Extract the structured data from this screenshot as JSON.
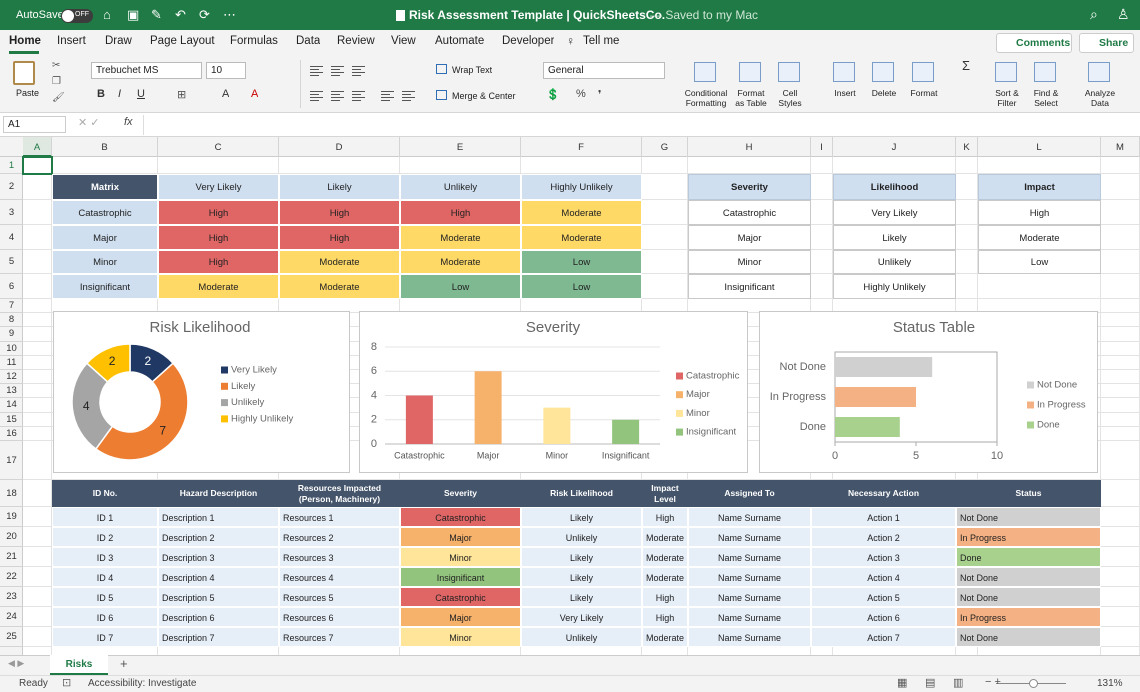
{
  "title_bar": {
    "autosave": "AutoSave",
    "toggle": "OFF",
    "title": "Risk Assessment Template | QuickSheetsCo.",
    "saved": "— Saved to my Mac"
  },
  "menu": {
    "tabs": [
      "Home",
      "Insert",
      "Draw",
      "Page Layout",
      "Formulas",
      "Data",
      "Review",
      "View",
      "Automate",
      "Developer",
      "Tell me"
    ],
    "comments": "Comments",
    "share": "Share"
  },
  "ribbon": {
    "paste": "Paste",
    "font": "Trebuchet MS",
    "font_size": "10",
    "wrap_text": "Wrap Text",
    "merge": "Merge & Center",
    "number_format": "General",
    "buttons": [
      [
        "Conditional",
        "Formatting"
      ],
      [
        "Format",
        "as Table"
      ],
      [
        "Cell",
        "Styles"
      ],
      [
        "Insert"
      ],
      [
        "Delete"
      ],
      [
        "Format"
      ],
      [
        "Sort &",
        "Filter"
      ],
      [
        "Find &",
        "Select"
      ],
      [
        "Analyze",
        "Data"
      ]
    ]
  },
  "formula_bar": {
    "cell": "A1",
    "fx": "fx"
  },
  "sheet": {
    "columns": [
      "A",
      "B",
      "C",
      "D",
      "E",
      "F",
      "G",
      "H",
      "I",
      "J",
      "K",
      "L",
      "M"
    ],
    "rows": [
      "1",
      "2",
      "3",
      "4",
      "5",
      "6",
      "7",
      "8",
      "9",
      "10",
      "11",
      "12",
      "13",
      "14",
      "15",
      "16",
      "17",
      "18",
      "19",
      "20",
      "21",
      "22",
      "23",
      "24",
      "25"
    ]
  },
  "matrix": {
    "header": [
      "Matrix",
      "Very Likely",
      "Likely",
      "Unlikely",
      "Highly Unlikely"
    ],
    "rows": [
      [
        "Catastrophic",
        "High",
        "High",
        "High",
        "Moderate"
      ],
      [
        "Major",
        "High",
        "High",
        "Moderate",
        "Moderate"
      ],
      [
        "Minor",
        "High",
        "Moderate",
        "Moderate",
        "Low"
      ],
      [
        "Insignificant",
        "Moderate",
        "Moderate",
        "Low",
        "Low"
      ]
    ]
  },
  "lists": [
    {
      "header": "Severity",
      "items": [
        "Catastrophic",
        "Major",
        "Minor",
        "Insignificant"
      ]
    },
    {
      "header": "Likelihood",
      "items": [
        "Very Likely",
        "Likely",
        "Unlikely",
        "Highly Unlikely"
      ]
    },
    {
      "header": "Impact",
      "items": [
        "High",
        "Moderate",
        "Low"
      ]
    }
  ],
  "chart_data": [
    {
      "type": "pie",
      "title": "Risk Likelihood",
      "categories": [
        "Very Likely",
        "Likely",
        "Unlikely",
        "Highly Unlikely"
      ],
      "values": [
        2,
        7,
        4,
        2
      ],
      "colors": [
        "#203864",
        "#ed7d31",
        "#a5a5a5",
        "#ffc000"
      ],
      "donut": true,
      "legend": "right"
    },
    {
      "type": "bar",
      "title": "Severity",
      "categories": [
        "Catastrophic",
        "Major",
        "Minor",
        "Insignificant"
      ],
      "values": [
        4,
        6,
        3,
        2
      ],
      "colors": [
        "#e06666",
        "#f6b26b",
        "#ffe599",
        "#93c47d"
      ],
      "ylim": [
        0,
        8
      ],
      "yticks": [
        0,
        2,
        4,
        6,
        8
      ],
      "grid": true,
      "legend": "right"
    },
    {
      "type": "barh",
      "title": "Status Table",
      "categories": [
        "Not Done",
        "In Progress",
        "Done"
      ],
      "values": [
        6,
        5,
        4
      ],
      "colors": [
        "#d0d0d0",
        "#f4b183",
        "#a9d18e"
      ],
      "xlim": [
        0,
        10
      ],
      "xticks": [
        0,
        5,
        10
      ],
      "legend": "right"
    }
  ],
  "register": {
    "header": [
      "ID No.",
      "Hazard Description",
      "Resources Impacted (Person, Machinery)",
      "Severity",
      "Risk Likelihood",
      "Impact Level",
      "Assigned To",
      "Necessary Action",
      "Status"
    ],
    "rows": [
      [
        "ID 1",
        "Description 1",
        "Resources 1",
        "Catastrophic",
        "Likely",
        "High",
        "Name Surname",
        "Action 1",
        "Not Done"
      ],
      [
        "ID 2",
        "Description 2",
        "Resources 2",
        "Major",
        "Unlikely",
        "Moderate",
        "Name Surname",
        "Action 2",
        "In Progress"
      ],
      [
        "ID 3",
        "Description 3",
        "Resources 3",
        "Minor",
        "Likely",
        "Moderate",
        "Name Surname",
        "Action 3",
        "Done"
      ],
      [
        "ID 4",
        "Description 4",
        "Resources 4",
        "Insignificant",
        "Likely",
        "Moderate",
        "Name Surname",
        "Action 4",
        "Not Done"
      ],
      [
        "ID 5",
        "Description 5",
        "Resources 5",
        "Catastrophic",
        "Likely",
        "High",
        "Name Surname",
        "Action 5",
        "Not Done"
      ],
      [
        "ID 6",
        "Description 6",
        "Resources 6",
        "Major",
        "Very Likely",
        "High",
        "Name Surname",
        "Action 6",
        "In Progress"
      ],
      [
        "ID 7",
        "Description 7",
        "Resources 7",
        "Minor",
        "Unlikely",
        "Moderate",
        "Name Surname",
        "Action 7",
        "Not Done"
      ]
    ]
  },
  "tabs_bar": {
    "sheet": "Risks",
    "add": "+"
  },
  "status_bar": {
    "ready": "Ready",
    "accessibility": "Accessibility: Investigate",
    "zoom": "131%"
  }
}
